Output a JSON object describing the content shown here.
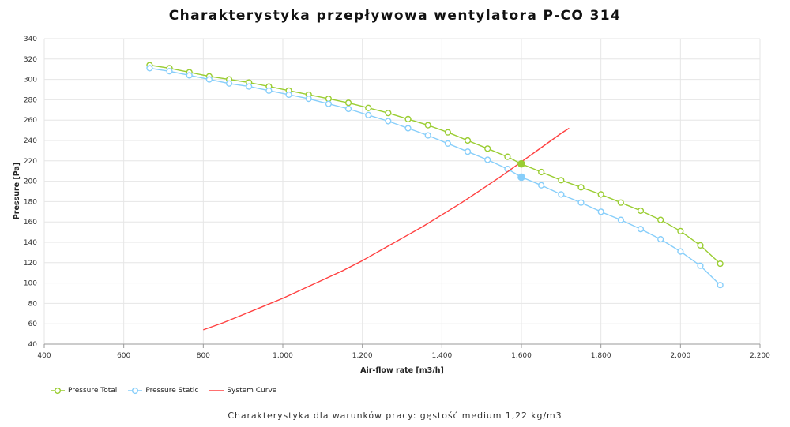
{
  "colors": {
    "total": "#9ACD32",
    "static": "#87CEFA",
    "system": "#FF4040",
    "grid": "#e6e6e6"
  },
  "chart_data": {
    "type": "line",
    "title": "Charakterystyka przepływowa wentylatora P-CO 314",
    "xlabel": "Air-flow rate [m3/h]",
    "ylabel": "Pressure [Pa]",
    "xlim": [
      400,
      2200
    ],
    "ylim": [
      40,
      340
    ],
    "grid": true,
    "legend_position": "bottom-left",
    "x_tick_labels": [
      "400",
      "600",
      "800",
      "1.000",
      "1.200",
      "1.400",
      "1.600",
      "1.800",
      "2.000",
      "2.200"
    ],
    "y_tick_labels": [
      "40",
      "60",
      "80",
      "100",
      "120",
      "140",
      "160",
      "180",
      "200",
      "220",
      "240",
      "260",
      "280",
      "300",
      "320",
      "340"
    ],
    "series": [
      {
        "name": "Pressure Total",
        "color": "#9ACD32",
        "marker": "circle",
        "x": [
          665,
          715,
          765,
          815,
          865,
          915,
          965,
          1015,
          1065,
          1115,
          1165,
          1215,
          1265,
          1315,
          1365,
          1415,
          1465,
          1515,
          1565,
          1600,
          1650,
          1700,
          1750,
          1800,
          1850,
          1900,
          1950,
          2000,
          2050,
          2100
        ],
        "y": [
          314,
          311,
          307,
          303,
          300,
          297,
          293,
          289,
          285,
          281,
          277,
          272,
          267,
          261,
          255,
          248,
          240,
          232,
          224,
          217,
          209,
          201,
          194,
          187,
          179,
          171,
          162,
          151,
          137,
          119
        ]
      },
      {
        "name": "Pressure Static",
        "color": "#87CEFA",
        "marker": "circle",
        "x": [
          665,
          715,
          765,
          815,
          865,
          915,
          965,
          1015,
          1065,
          1115,
          1165,
          1215,
          1265,
          1315,
          1365,
          1415,
          1465,
          1515,
          1565,
          1600,
          1650,
          1700,
          1750,
          1800,
          1850,
          1900,
          1950,
          2000,
          2050,
          2100
        ],
        "y": [
          311,
          308,
          304,
          300,
          296,
          293,
          289,
          285,
          281,
          276,
          271,
          265,
          259,
          252,
          245,
          237,
          229,
          221,
          212,
          204,
          196,
          187,
          179,
          170,
          162,
          153,
          143,
          131,
          117,
          98
        ]
      },
      {
        "name": "System Curve",
        "color": "#FF4040",
        "marker": "none",
        "x": [
          800,
          850,
          900,
          950,
          1000,
          1050,
          1100,
          1150,
          1200,
          1250,
          1300,
          1350,
          1400,
          1450,
          1500,
          1550,
          1600,
          1650,
          1700,
          1720
        ],
        "y": [
          54,
          61,
          69,
          77,
          85,
          94,
          103,
          112,
          122,
          133,
          144,
          155,
          167,
          179,
          192,
          205,
          219,
          233,
          247,
          252
        ]
      }
    ],
    "operating_points": [
      {
        "series": "Pressure Total",
        "x": 1600,
        "y": 217
      },
      {
        "series": "Pressure Static",
        "x": 1600,
        "y": 204
      }
    ]
  },
  "legend": {
    "items": [
      "Pressure Total",
      "Pressure Static",
      "System Curve"
    ]
  },
  "footer": {
    "text": "Charakterystyka dla warunków pracy: gęstość medium 1,22 kg/m3"
  }
}
